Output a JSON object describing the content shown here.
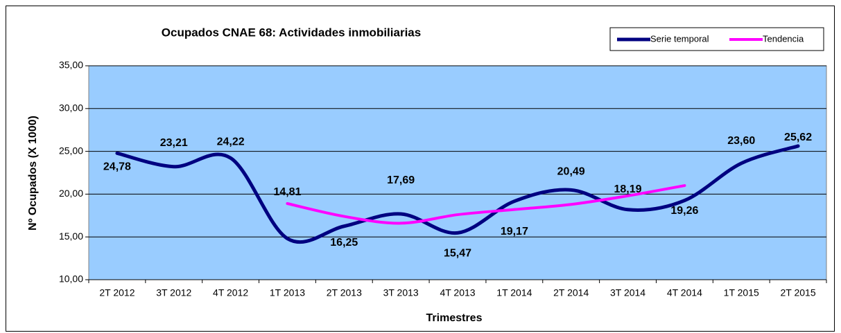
{
  "chart_data": {
    "type": "line",
    "title": "Ocupados CNAE 68: Actividades inmobiliarias",
    "x_label": "Trimestres",
    "y_label": "Nº Ocupados (X 1000)",
    "categories": [
      "2T 2012",
      "3T 2012",
      "4T 2012",
      "1T 2013",
      "2T 2013",
      "3T 2013",
      "4T 2013",
      "1T 2014",
      "2T 2014",
      "3T 2014",
      "4T 2014",
      "1T 2015",
      "2T 2015"
    ],
    "series": [
      {
        "name": "Serie temporal",
        "color": "#000080",
        "values": [
          24.78,
          23.21,
          24.22,
          14.81,
          16.25,
          17.69,
          15.47,
          19.17,
          20.49,
          18.19,
          19.26,
          23.6,
          25.62
        ],
        "value_labels": [
          "24,78",
          "23,21",
          "24,22",
          "14,81",
          "16,25",
          "17,69",
          "15,47",
          "19,17",
          "20,49",
          "18,19",
          "19,26",
          "23,60",
          "25,62"
        ]
      },
      {
        "name": "Tendencia",
        "color": "#ff00ff",
        "values": [
          null,
          null,
          null,
          18.9,
          17.4,
          16.6,
          17.6,
          18.2,
          18.8,
          19.8,
          21.0,
          null,
          null
        ]
      }
    ],
    "ylim": [
      10,
      35
    ],
    "yticks": [
      {
        "value": 10,
        "label": "10,00"
      },
      {
        "value": 15,
        "label": "15,00"
      },
      {
        "value": 20,
        "label": "20,00"
      },
      {
        "value": 25,
        "label": "25,00"
      },
      {
        "value": 30,
        "label": "30,00"
      },
      {
        "value": 35,
        "label": "35,00"
      }
    ],
    "grid": true,
    "legend": "top-right"
  }
}
